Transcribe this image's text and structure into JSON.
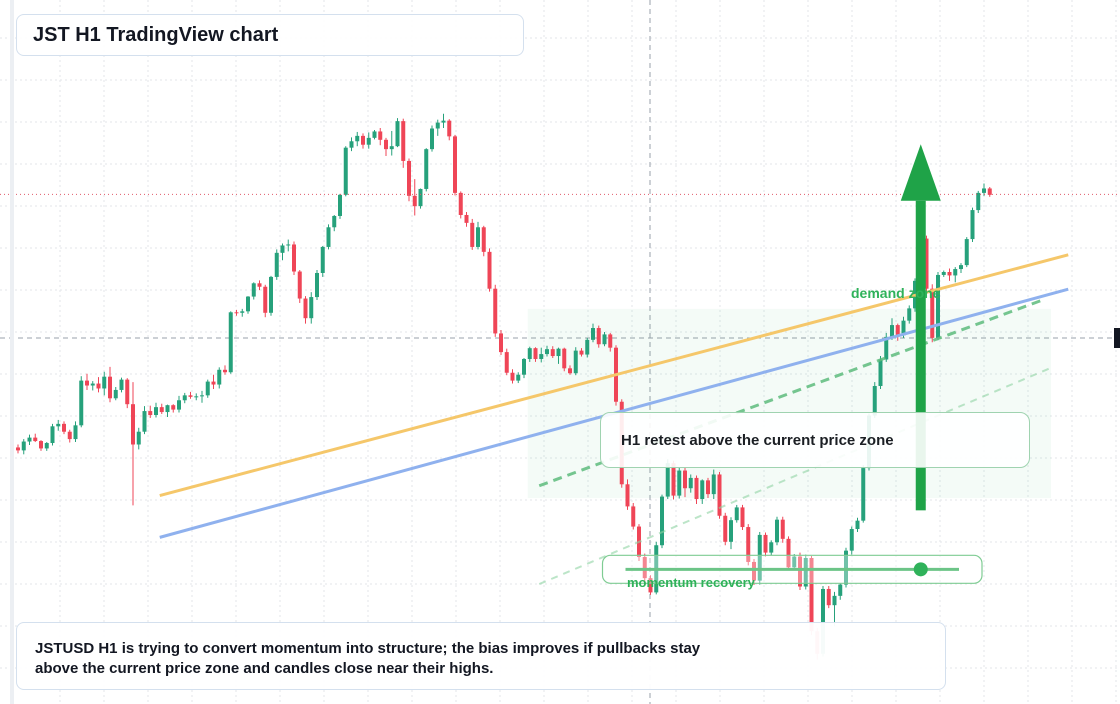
{
  "header": {
    "title": "JST H1 TradingView chart"
  },
  "annotations": {
    "demand_zone_label": "demand zone",
    "retest_note": "H1 retest above the current price zone",
    "momentum_label": "momentum recovery"
  },
  "caption": "JSTUSD H1 is trying to convert momentum into structure; the bias improves if pullbacks stay above the current price zone and candles close near their highs.",
  "colors": {
    "bull": "#26a17b",
    "bear": "#ef4557",
    "trend_orange": "#f5c76a",
    "trend_blue": "#8fb1ee",
    "zone_green": "#2fb25a",
    "grid": "#e3e6ea",
    "price_line": "#e05a6a"
  },
  "chart_data": {
    "type": "candlestick",
    "symbol": "JSTUSD",
    "timeframe": "H1",
    "title": "JST H1 TradingView chart",
    "legend": "none",
    "grid": true,
    "price_range": [
      0,
      100
    ],
    "candles": [
      [
        31.8,
        32.4,
        30.6,
        31.2
      ],
      [
        31.2,
        33.5,
        30.4,
        33.0
      ],
      [
        33.0,
        34.4,
        32.3,
        33.8
      ],
      [
        33.8,
        34.6,
        32.9,
        33.1
      ],
      [
        33.1,
        33.3,
        31.1,
        31.6
      ],
      [
        31.6,
        32.9,
        31.1,
        32.7
      ],
      [
        32.7,
        36.6,
        32.2,
        36.1
      ],
      [
        36.1,
        37.4,
        35.2,
        36.6
      ],
      [
        36.6,
        37.1,
        34.5,
        35.0
      ],
      [
        35.0,
        35.4,
        32.8,
        33.5
      ],
      [
        33.5,
        37.1,
        32.9,
        36.3
      ],
      [
        36.3,
        46.3,
        35.9,
        45.4
      ],
      [
        45.4,
        46.8,
        43.5,
        44.4
      ],
      [
        44.4,
        45.3,
        43.4,
        44.8
      ],
      [
        44.8,
        46.1,
        43.0,
        43.8
      ],
      [
        43.8,
        47.2,
        42.4,
        46.2
      ],
      [
        46.2,
        48.2,
        41.0,
        41.8
      ],
      [
        41.8,
        44.1,
        41.4,
        43.5
      ],
      [
        43.5,
        46.0,
        43.0,
        45.6
      ],
      [
        45.6,
        45.9,
        39.8,
        40.6
      ],
      [
        40.6,
        45.1,
        20.0,
        32.4
      ],
      [
        32.4,
        35.8,
        31.4,
        35.0
      ],
      [
        35.0,
        40.2,
        34.5,
        39.2
      ],
      [
        39.2,
        40.3,
        37.8,
        38.4
      ],
      [
        38.4,
        40.9,
        37.9,
        40.0
      ],
      [
        40.0,
        40.7,
        38.6,
        39.0
      ],
      [
        39.0,
        40.5,
        38.0,
        40.4
      ],
      [
        40.4,
        40.6,
        38.9,
        39.5
      ],
      [
        39.5,
        42.3,
        38.9,
        41.4
      ],
      [
        41.4,
        42.9,
        40.8,
        42.4
      ],
      [
        42.4,
        43.1,
        41.7,
        42.1
      ],
      [
        42.1,
        42.8,
        41.4,
        42.2
      ],
      [
        42.2,
        43.3,
        40.9,
        42.4
      ],
      [
        42.4,
        45.6,
        41.9,
        45.2
      ],
      [
        45.2,
        46.6,
        43.7,
        44.6
      ],
      [
        44.6,
        48.1,
        43.8,
        47.6
      ],
      [
        47.6,
        48.5,
        46.6,
        47.1
      ],
      [
        47.1,
        59.5,
        46.8,
        59.3
      ],
      [
        59.3,
        59.8,
        58.6,
        59.2
      ],
      [
        59.2,
        60.0,
        58.4,
        59.5
      ],
      [
        59.5,
        62.6,
        59.0,
        62.5
      ],
      [
        62.5,
        65.4,
        61.9,
        65.2
      ],
      [
        65.2,
        65.8,
        63.8,
        64.5
      ],
      [
        64.5,
        64.9,
        58.3,
        59.2
      ],
      [
        59.2,
        66.7,
        58.6,
        66.5
      ],
      [
        66.5,
        72.1,
        65.9,
        71.4
      ],
      [
        71.4,
        73.3,
        69.9,
        72.9
      ],
      [
        72.9,
        74.1,
        71.7,
        73.1
      ],
      [
        73.1,
        73.7,
        66.9,
        67.6
      ],
      [
        67.6,
        67.9,
        61.2,
        62.1
      ],
      [
        62.1,
        62.6,
        57.0,
        58.1
      ],
      [
        58.1,
        63.4,
        57.0,
        62.4
      ],
      [
        62.4,
        67.9,
        61.8,
        67.3
      ],
      [
        67.3,
        72.8,
        66.5,
        72.6
      ],
      [
        72.6,
        77.2,
        72.1,
        76.6
      ],
      [
        76.6,
        79.1,
        75.8,
        78.9
      ],
      [
        78.9,
        83.4,
        78.3,
        83.2
      ],
      [
        83.2,
        93.1,
        82.9,
        92.8
      ],
      [
        92.8,
        94.9,
        92.1,
        94.1
      ],
      [
        94.1,
        96.0,
        93.1,
        95.2
      ],
      [
        95.2,
        95.7,
        92.6,
        93.4
      ],
      [
        93.4,
        95.9,
        92.6,
        94.8
      ],
      [
        94.8,
        96.4,
        94.5,
        96.1
      ],
      [
        96.1,
        96.8,
        93.3,
        94.4
      ],
      [
        94.4,
        94.8,
        91.1,
        92.5
      ],
      [
        92.5,
        96.2,
        91.2,
        93.1
      ],
      [
        93.1,
        98.8,
        92.9,
        98.2
      ],
      [
        98.2,
        98.7,
        88.7,
        90.1
      ],
      [
        90.1,
        90.6,
        81.9,
        83.0
      ],
      [
        83.0,
        86.4,
        79.0,
        80.9
      ],
      [
        80.9,
        84.5,
        80.4,
        84.4
      ],
      [
        84.4,
        92.7,
        83.9,
        92.5
      ],
      [
        92.5,
        97.3,
        92.0,
        96.7
      ],
      [
        96.7,
        98.5,
        95.2,
        97.9
      ],
      [
        97.9,
        99.7,
        96.8,
        98.3
      ],
      [
        98.3,
        98.6,
        94.3,
        95.1
      ],
      [
        95.1,
        95.4,
        83.1,
        83.6
      ],
      [
        83.6,
        83.9,
        78.4,
        79.1
      ],
      [
        79.1,
        79.7,
        76.7,
        77.5
      ],
      [
        77.5,
        78.3,
        72.0,
        72.6
      ],
      [
        72.6,
        77.7,
        72.1,
        76.6
      ],
      [
        76.6,
        76.9,
        70.7,
        71.6
      ],
      [
        71.6,
        72.3,
        63.5,
        64.1
      ],
      [
        64.1,
        64.9,
        54.3,
        55.0
      ],
      [
        55.0,
        55.7,
        50.6,
        51.2
      ],
      [
        51.2,
        51.9,
        46.5,
        47.0
      ],
      [
        47.0,
        47.7,
        44.8,
        45.4
      ],
      [
        45.4,
        47.1,
        44.9,
        46.6
      ],
      [
        46.6,
        50.0,
        45.9,
        49.8
      ],
      [
        49.8,
        52.3,
        49.2,
        52.0
      ],
      [
        52.0,
        52.2,
        49.2,
        49.8
      ],
      [
        49.8,
        52.1,
        49.1,
        50.8
      ],
      [
        50.8,
        52.5,
        50.3,
        51.8
      ],
      [
        51.8,
        52.4,
        50.0,
        50.4
      ],
      [
        50.4,
        52.1,
        48.8,
        51.9
      ],
      [
        51.9,
        52.1,
        47.3,
        47.9
      ],
      [
        47.9,
        48.5,
        46.6,
        46.9
      ],
      [
        46.9,
        52.2,
        46.5,
        51.5
      ],
      [
        51.5,
        52.0,
        50.3,
        50.7
      ],
      [
        50.7,
        54.1,
        50.1,
        53.7
      ],
      [
        53.7,
        57.0,
        53.2,
        56.1
      ],
      [
        56.1,
        56.6,
        52.1,
        52.8
      ],
      [
        52.8,
        55.3,
        52.4,
        54.8
      ],
      [
        54.8,
        55.1,
        51.3,
        52.1
      ],
      [
        52.1,
        52.6,
        40.3,
        41.1
      ],
      [
        41.1,
        41.6,
        23.6,
        24.3
      ],
      [
        24.3,
        25.3,
        19.1,
        19.8
      ],
      [
        19.8,
        20.5,
        15.1,
        15.7
      ],
      [
        15.7,
        16.2,
        8.7,
        9.5
      ],
      [
        9.5,
        10.2,
        4.6,
        5.2
      ],
      [
        5.2,
        5.8,
        1.8,
        2.3
      ],
      [
        2.3,
        12.6,
        1.9,
        11.9
      ],
      [
        11.9,
        22.2,
        11.3,
        21.8
      ],
      [
        21.8,
        29.4,
        21.3,
        28.6
      ],
      [
        28.6,
        29.1,
        21.2,
        22.0
      ],
      [
        22.0,
        27.7,
        21.4,
        27.1
      ],
      [
        27.1,
        27.7,
        21.7,
        23.5
      ],
      [
        23.5,
        26.3,
        22.6,
        25.6
      ],
      [
        25.6,
        26.1,
        20.3,
        21.3
      ],
      [
        21.3,
        25.3,
        20.3,
        25.1
      ],
      [
        25.1,
        25.6,
        21.5,
        22.3
      ],
      [
        22.3,
        27.3,
        21.3,
        26.3
      ],
      [
        26.3,
        26.8,
        17.3,
        17.9
      ],
      [
        17.9,
        18.5,
        11.9,
        12.6
      ],
      [
        12.6,
        17.6,
        11.1,
        17.0
      ],
      [
        17.0,
        20.1,
        16.5,
        19.6
      ],
      [
        19.6,
        20.1,
        15.0,
        15.6
      ],
      [
        15.6,
        16.2,
        7.8,
        8.5
      ],
      [
        8.5,
        9.1,
        3.8,
        4.7
      ],
      [
        4.7,
        14.6,
        3.9,
        14.0
      ],
      [
        14.0,
        14.5,
        9.6,
        10.4
      ],
      [
        10.4,
        12.9,
        9.8,
        12.5
      ],
      [
        12.5,
        17.7,
        11.9,
        17.1
      ],
      [
        17.1,
        17.7,
        12.4,
        13.2
      ],
      [
        13.2,
        13.7,
        6.8,
        7.4
      ],
      [
        7.4,
        10.1,
        6.9,
        9.6
      ],
      [
        9.6,
        10.4,
        2.8,
        3.5
      ],
      [
        3.5,
        10.0,
        2.9,
        9.3
      ],
      [
        9.3,
        9.7,
        -6.4,
        -5.6
      ],
      [
        -5.6,
        -4.9,
        -11.4,
        -10.2
      ],
      [
        -10.2,
        3.6,
        -10.8,
        3.0
      ],
      [
        3.0,
        3.6,
        -0.9,
        -0.3
      ],
      [
        -0.3,
        2.4,
        -4.6,
        1.6
      ],
      [
        1.6,
        4.2,
        0.8,
        3.9
      ],
      [
        3.9,
        11.4,
        3.3,
        10.8
      ],
      [
        10.8,
        15.7,
        10.0,
        15.2
      ],
      [
        15.2,
        17.5,
        14.6,
        16.9
      ],
      [
        16.9,
        28.2,
        16.5,
        27.6
      ],
      [
        27.6,
        38.7,
        27.1,
        38.3
      ],
      [
        38.3,
        45.1,
        37.8,
        44.3
      ],
      [
        44.3,
        50.4,
        43.7,
        49.7
      ],
      [
        49.7,
        55.1,
        49.2,
        54.3
      ],
      [
        54.3,
        58.1,
        53.7,
        56.7
      ],
      [
        56.7,
        57.0,
        53.5,
        54.6
      ],
      [
        54.6,
        58.4,
        54.1,
        57.6
      ],
      [
        57.6,
        60.7,
        57.0,
        60.1
      ],
      [
        60.1,
        66.2,
        59.4,
        65.7
      ],
      [
        65.7,
        75.1,
        65.2,
        74.3
      ],
      [
        74.3,
        74.9,
        63.4,
        64.1
      ],
      [
        64.1,
        65.0,
        53.2,
        54.1
      ],
      [
        54.1,
        67.5,
        53.6,
        66.9
      ],
      [
        66.9,
        67.8,
        66.5,
        67.5
      ],
      [
        67.5,
        68.2,
        65.7,
        66.8
      ],
      [
        66.8,
        68.5,
        65.4,
        68.1
      ],
      [
        68.1,
        69.3,
        67.3,
        68.9
      ],
      [
        68.9,
        74.6,
        68.5,
        74.2
      ],
      [
        74.2,
        80.6,
        73.6,
        80.1
      ],
      [
        80.1,
        84.0,
        79.5,
        83.6
      ],
      [
        83.6,
        85.5,
        83.0,
        84.5
      ],
      [
        84.5,
        84.8,
        82.8,
        83.2
      ]
    ],
    "current_price": 83.3,
    "overlays": [
      {
        "label": "demand zone",
        "kind": "shaded-zone",
        "from": 21.5,
        "to": 60.0
      },
      {
        "label": "momentum recovery",
        "kind": "support-marker",
        "level": 7.0
      },
      {
        "kind": "trendline",
        "color": "orange",
        "start": 22.0,
        "end": 71.0
      },
      {
        "kind": "trendline",
        "color": "blue",
        "start": 13.5,
        "end": 64.0
      }
    ],
    "annotations": [
      "demand zone",
      "H1 retest above the current price zone",
      "momentum recovery"
    ]
  }
}
